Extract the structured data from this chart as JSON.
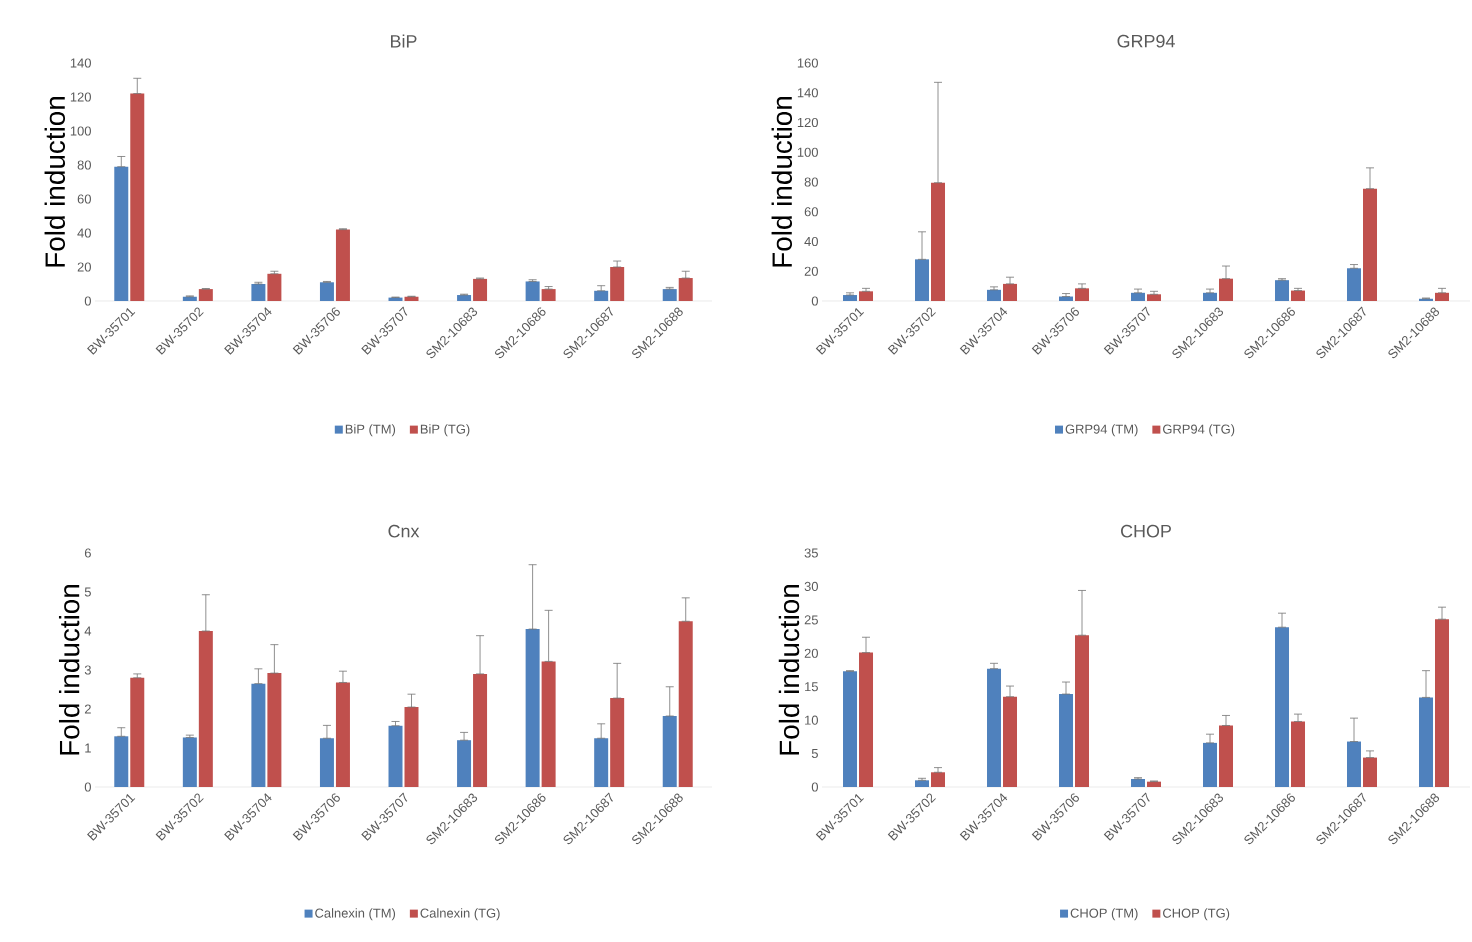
{
  "chart_data": [
    {
      "type": "bar",
      "title": "BiP",
      "ylabel": "Fold induction",
      "categories": [
        "BW-35701",
        "BW-35702",
        "BW-35704",
        "BW-35706",
        "BW-35707",
        "SM2-10683",
        "SM2-10686",
        "SM2-10687",
        "SM2-10688"
      ],
      "ylim": [
        0,
        140
      ],
      "yticks": [
        0,
        20,
        40,
        60,
        80,
        100,
        120,
        140
      ],
      "legend": "bottom",
      "series": [
        {
          "name": "BiP (TM)",
          "color": "#4f81bd",
          "values": [
            79,
            2.5,
            10,
            11,
            2,
            3.5,
            11.5,
            6,
            7
          ],
          "errors": [
            [
              79,
              85
            ],
            [
              2.5,
              3
            ],
            [
              10,
              11
            ],
            [
              11,
              11.5
            ],
            [
              2,
              2.3
            ],
            [
              3.5,
              4
            ],
            [
              11.5,
              12.5
            ],
            [
              6,
              9
            ],
            [
              7,
              8
            ]
          ]
        },
        {
          "name": "BiP (TG)",
          "color": "#c0504d",
          "values": [
            122,
            7,
            16,
            42,
            2.5,
            13,
            7,
            20,
            13.5
          ],
          "errors": [
            [
              122,
              131
            ],
            [
              7,
              7.3
            ],
            [
              16,
              17.5
            ],
            [
              42,
              42.5
            ],
            [
              2.5,
              2.8
            ],
            [
              13,
              13.5
            ],
            [
              7,
              8.5
            ],
            [
              20,
              23.5
            ],
            [
              13.5,
              17.5
            ]
          ]
        }
      ]
    },
    {
      "type": "bar",
      "title": "GRP94",
      "ylabel": "Fold induction",
      "categories": [
        "BW-35701",
        "BW-35702",
        "BW-35704",
        "BW-35706",
        "BW-35707",
        "SM2-10683",
        "SM2-10686",
        "SM2-10687",
        "SM2-10688"
      ],
      "ylim": [
        0,
        160
      ],
      "yticks": [
        0,
        20,
        40,
        60,
        80,
        100,
        120,
        140,
        160
      ],
      "legend": "bottom",
      "series": [
        {
          "name": "GRP94 (TM)",
          "color": "#4f81bd",
          "values": [
            4,
            28,
            7.5,
            3,
            5.5,
            5.5,
            14,
            22,
            1.5
          ],
          "errors": [
            [
              4,
              5.5
            ],
            [
              28,
              46.5
            ],
            [
              7.5,
              9.5
            ],
            [
              3,
              5
            ],
            [
              5.5,
              8
            ],
            [
              5.5,
              8
            ],
            [
              14,
              15
            ],
            [
              22,
              24.5
            ],
            [
              1.5,
              2
            ]
          ]
        },
        {
          "name": "GRP94 (TG)",
          "color": "#c0504d",
          "values": [
            6.5,
            79.5,
            11.5,
            8.5,
            4.5,
            15,
            7,
            75.5,
            5.5
          ],
          "errors": [
            [
              6.5,
              8.5
            ],
            [
              79.5,
              147
            ],
            [
              11.5,
              16
            ],
            [
              8.5,
              11.5
            ],
            [
              4.5,
              6.5
            ],
            [
              15,
              23.5
            ],
            [
              7,
              8.5
            ],
            [
              75.5,
              89.5
            ],
            [
              5.5,
              8.5
            ]
          ]
        }
      ]
    },
    {
      "type": "bar",
      "title": "Cnx",
      "ylabel": "Fold induction",
      "categories": [
        "BW-35701",
        "BW-35702",
        "BW-35704",
        "BW-35706",
        "BW-35707",
        "SM2-10683",
        "SM2-10686",
        "SM2-10687",
        "SM2-10688"
      ],
      "ylim": [
        0,
        6
      ],
      "yticks": [
        0,
        1,
        2,
        3,
        4,
        5,
        6
      ],
      "legend": "bottom",
      "series": [
        {
          "name": "Calnexin (TM)",
          "color": "#4f81bd",
          "values": [
            1.3,
            1.27,
            2.65,
            1.25,
            1.57,
            1.2,
            4.05,
            1.25,
            1.82
          ],
          "errors": [
            [
              1.3,
              1.52
            ],
            [
              1.27,
              1.33
            ],
            [
              2.65,
              3.03
            ],
            [
              1.25,
              1.58
            ],
            [
              1.57,
              1.68
            ],
            [
              1.2,
              1.4
            ],
            [
              4.05,
              5.7
            ],
            [
              1.25,
              1.62
            ],
            [
              1.82,
              2.57
            ]
          ]
        },
        {
          "name": "Calnexin (TG)",
          "color": "#c0504d",
          "values": [
            2.8,
            4.0,
            2.92,
            2.68,
            2.05,
            2.9,
            3.22,
            2.28,
            4.25
          ],
          "errors": [
            [
              2.8,
              2.9
            ],
            [
              4.0,
              4.93
            ],
            [
              2.92,
              3.65
            ],
            [
              2.68,
              2.97
            ],
            [
              2.05,
              2.38
            ],
            [
              2.9,
              3.88
            ],
            [
              3.22,
              4.53
            ],
            [
              2.28,
              3.17
            ],
            [
              4.25,
              4.85
            ]
          ]
        }
      ]
    },
    {
      "type": "bar",
      "title": "CHOP",
      "ylabel": "Fold induction",
      "categories": [
        "BW-35701",
        "BW-35702",
        "BW-35704",
        "BW-35706",
        "BW-35707",
        "SM2-10683",
        "SM2-10686",
        "SM2-10687",
        "SM2-10688"
      ],
      "ylim": [
        0,
        35
      ],
      "yticks": [
        0,
        5,
        10,
        15,
        20,
        25,
        30,
        35
      ],
      "legend": "bottom",
      "series": [
        {
          "name": "CHOP (TM)",
          "color": "#4f81bd",
          "values": [
            17.3,
            1.0,
            17.7,
            13.9,
            1.2,
            6.6,
            23.9,
            6.8,
            13.4
          ],
          "errors": [
            [
              17.3,
              17.4
            ],
            [
              1.0,
              1.3
            ],
            [
              17.7,
              18.5
            ],
            [
              13.9,
              15.7
            ],
            [
              1.2,
              1.4
            ],
            [
              6.6,
              7.9
            ],
            [
              23.9,
              26.0
            ],
            [
              6.8,
              10.3
            ],
            [
              13.4,
              17.4
            ]
          ]
        },
        {
          "name": "CHOP (TG)",
          "color": "#c0504d",
          "values": [
            20.1,
            2.2,
            13.5,
            22.7,
            0.8,
            9.2,
            9.8,
            4.4,
            25.1
          ],
          "errors": [
            [
              20.1,
              22.4
            ],
            [
              2.2,
              2.9
            ],
            [
              13.5,
              15.1
            ],
            [
              22.7,
              29.4
            ],
            [
              0.8,
              0.9
            ],
            [
              9.2,
              10.7
            ],
            [
              9.8,
              10.9
            ],
            [
              4.4,
              5.4
            ],
            [
              25.1,
              26.9
            ]
          ]
        }
      ]
    }
  ]
}
